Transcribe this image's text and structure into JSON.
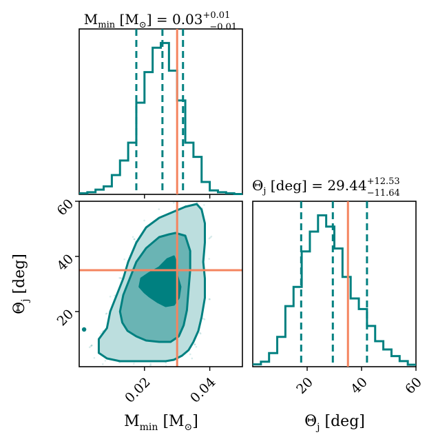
{
  "colors": {
    "posterior": "#008080",
    "truth": "#f4845f",
    "fill_outer": "#bcdede",
    "fill_mid": "#6ab4b4",
    "fill_inner": "#008080"
  },
  "chart_data": [
    {
      "type": "histogram",
      "panel": "marginal-mmin",
      "title_param": "M",
      "title_param_sub": "min",
      "title_unit": "[M",
      "title_unit_sub": "⊙",
      "title_unit_close": "]",
      "title_eq": " = 0.03",
      "title_plus": "+0.01",
      "title_minus": "−0.01",
      "xlim": [
        0.0,
        0.05
      ],
      "xticks": [
        0.02,
        0.04
      ],
      "bin_edges": [
        0.0,
        0.0025,
        0.005,
        0.0075,
        0.01,
        0.0125,
        0.015,
        0.0175,
        0.02,
        0.0225,
        0.025,
        0.0275,
        0.03,
        0.0325,
        0.035,
        0.0375,
        0.04,
        0.0425,
        0.045,
        0.0475,
        0.05
      ],
      "counts": [
        0.3,
        0.6,
        1.3,
        2.2,
        5.3,
        9.3,
        14.2,
        25.2,
        33.6,
        40.3,
        41.6,
        34.0,
        25.8,
        14.2,
        10.3,
        3.4,
        1.1,
        0.6,
        0.3,
        0.1
      ],
      "quantiles": [
        0.0175,
        0.0255,
        0.0318
      ],
      "truth": 0.03
    },
    {
      "type": "contour",
      "panel": "joint",
      "xlim": [
        0.0,
        0.05
      ],
      "ylim": [
        0,
        60
      ],
      "xticks": [
        0.02,
        0.04
      ],
      "xtick_labels": [
        "0.02",
        "0.04"
      ],
      "yticks": [
        20,
        40,
        60
      ],
      "ytick_labels": [
        "20",
        "40",
        "60"
      ],
      "xlabel_main": "M",
      "xlabel_sub": "min",
      "xlabel_unit": "[M",
      "xlabel_unit_sub": "⊙",
      "xlabel_unit_close": "]",
      "ylabel_main": "Θ",
      "ylabel_sub": "j",
      "ylabel_unit": "[deg]",
      "truth": [
        0.03,
        35
      ],
      "levels": [
        {
          "name": "outer",
          "points": [
            [
              0.0085,
              3.0
            ],
            [
              0.006,
              5.0
            ],
            [
              0.006,
              10.0
            ],
            [
              0.0085,
              14.0
            ],
            [
              0.0095,
              20.0
            ],
            [
              0.0115,
              26.0
            ],
            [
              0.0135,
              32.0
            ],
            [
              0.015,
              38.0
            ],
            [
              0.0175,
              45.0
            ],
            [
              0.0205,
              50.5
            ],
            [
              0.0245,
              54.0
            ],
            [
              0.0285,
              56.0
            ],
            [
              0.0325,
              58.0
            ],
            [
              0.036,
              59.0
            ],
            [
              0.0375,
              57.0
            ],
            [
              0.0385,
              52.0
            ],
            [
              0.0385,
              45.0
            ],
            [
              0.038,
              38.0
            ],
            [
              0.0385,
              32.0
            ],
            [
              0.0385,
              25.0
            ],
            [
              0.0375,
              18.0
            ],
            [
              0.0365,
              13.0
            ],
            [
              0.035,
              9.0
            ],
            [
              0.0335,
              6.0
            ],
            [
              0.0315,
              4.0
            ],
            [
              0.029,
              2.5
            ],
            [
              0.0265,
              2.0
            ],
            [
              0.022,
              2.0
            ],
            [
              0.017,
              2.0
            ],
            [
              0.0125,
              2.0
            ]
          ]
        },
        {
          "name": "middle",
          "points": [
            [
              0.0125,
              20.0
            ],
            [
              0.0135,
              26.0
            ],
            [
              0.0155,
              32.0
            ],
            [
              0.0175,
              38.0
            ],
            [
              0.0205,
              43.0
            ],
            [
              0.0245,
              47.0
            ],
            [
              0.0275,
              48.0
            ],
            [
              0.0295,
              48.5
            ],
            [
              0.0325,
              47.5
            ],
            [
              0.034,
              42.0
            ],
            [
              0.034,
              35.0
            ],
            [
              0.0335,
              28.0
            ],
            [
              0.033,
              20.5
            ],
            [
              0.032,
              15.0
            ],
            [
              0.0305,
              11.0
            ],
            [
              0.028,
              9.0
            ],
            [
              0.0245,
              9.0
            ],
            [
              0.0205,
              9.5
            ],
            [
              0.0175,
              11.0
            ],
            [
              0.0148,
              13.0
            ],
            [
              0.0132,
              16.0
            ]
          ]
        },
        {
          "name": "inner",
          "points": [
            [
              0.0185,
              29.0
            ],
            [
              0.019,
              32.0
            ],
            [
              0.0215,
              34.0
            ],
            [
              0.0245,
              36.0
            ],
            [
              0.027,
              39.0
            ],
            [
              0.029,
              40.0
            ],
            [
              0.03,
              37.0
            ],
            [
              0.03,
              33.0
            ],
            [
              0.031,
              29.0
            ],
            [
              0.0305,
              25.0
            ],
            [
              0.029,
              22.5
            ],
            [
              0.0265,
              22.0
            ],
            [
              0.024,
              23.5
            ],
            [
              0.0215,
              25.5
            ],
            [
              0.02,
              27.0
            ]
          ]
        }
      ]
    },
    {
      "type": "histogram",
      "panel": "marginal-thetaj",
      "title_param": "Θ",
      "title_param_sub": "j",
      "title_unit": "[deg]",
      "title_eq": " = 29.44",
      "title_plus": "+12.53",
      "title_minus": "−11.64",
      "xlim": [
        0,
        60
      ],
      "xticks": [
        20,
        40,
        60
      ],
      "xtick_labels": [
        "20",
        "40",
        "60"
      ],
      "xlabel_main": "Θ",
      "xlabel_sub": "j",
      "xlabel_unit": "[deg]",
      "bin_edges": [
        0,
        3,
        6,
        9,
        12,
        15,
        18,
        21,
        24,
        27,
        30,
        33,
        36,
        39,
        42,
        45,
        48,
        51,
        54,
        57,
        60
      ],
      "counts": [
        0.7,
        1.5,
        4.1,
        9.0,
        18.3,
        24.1,
        34.8,
        40.8,
        45.7,
        42.3,
        35.7,
        27.1,
        20.6,
        17.4,
        12.3,
        7.7,
        5.2,
        3.2,
        1.7,
        0.6
      ],
      "quantiles": [
        17.8,
        29.44,
        42.0
      ],
      "truth": 35
    }
  ]
}
